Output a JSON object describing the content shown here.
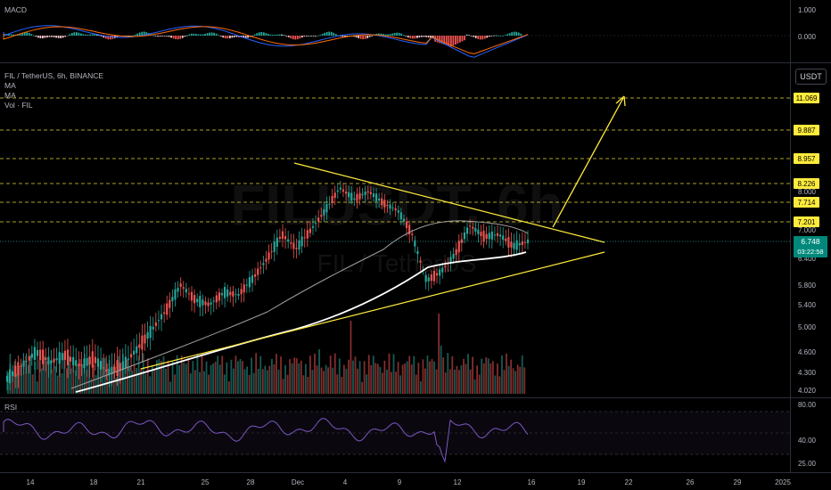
{
  "pair_title": "FIL / TetherUS, 6h, BINANCE",
  "currency_button": "USDT",
  "watermark_symbol": "FILUSDT, 6h",
  "watermark_name": "FIL / TetherUS",
  "legends": {
    "macd": "MACD",
    "ma1": "MA",
    "ma2": "MA",
    "vol": "Vol · FIL",
    "rsi": "RSI"
  },
  "current_price": "6.748",
  "countdown": "03:22:58",
  "colors": {
    "up": "#26a69a",
    "down": "#ef5350",
    "yellow": "#ffeb3b",
    "ma_white": "#ffffff",
    "ma_gray": "#9e9e9e",
    "macd_line": "#2962ff",
    "signal_line": "#ff6d00",
    "rsi_line": "#7e57c2",
    "price_tag": "#00897b"
  },
  "chart_data": [
    {
      "type": "candlestick",
      "pair": "FIL/USDT",
      "interval": "6h",
      "exchange": "BINANCE",
      "x_tick_labels": [
        "14",
        "18",
        "21",
        "25",
        "28",
        "Dec",
        "4",
        "9",
        "12",
        "16",
        "19",
        "22",
        "26",
        "29",
        "2025"
      ],
      "price_axis_labels": [
        "8.000",
        "7.000",
        "6.400",
        "5.800",
        "5.400",
        "5.000",
        "4.600",
        "4.300",
        "4.020"
      ],
      "horizontal_levels": [
        {
          "label": "11.069",
          "value": 11.069
        },
        {
          "label": "9.887",
          "value": 9.887
        },
        {
          "label": "8.957",
          "value": 8.957
        },
        {
          "label": "8.226",
          "value": 8.226
        },
        {
          "label": "7.714",
          "value": 7.714
        },
        {
          "label": "7.201",
          "value": 7.201
        }
      ],
      "last_price": 6.748,
      "candles_approx": [
        [
          4.05,
          4.25,
          4.0,
          4.2
        ],
        [
          4.2,
          4.45,
          4.15,
          4.4
        ],
        [
          4.4,
          4.7,
          4.35,
          4.6
        ],
        [
          4.6,
          4.62,
          4.4,
          4.45
        ],
        [
          4.45,
          4.65,
          4.4,
          4.55
        ],
        [
          4.55,
          4.6,
          4.35,
          4.4
        ],
        [
          4.4,
          4.55,
          4.3,
          4.5
        ],
        [
          4.5,
          4.52,
          4.25,
          4.3
        ],
        [
          4.3,
          4.45,
          4.2,
          4.4
        ],
        [
          4.4,
          4.7,
          4.35,
          4.65
        ],
        [
          4.65,
          5.0,
          4.6,
          4.95
        ],
        [
          4.95,
          5.4,
          4.9,
          5.3
        ],
        [
          5.3,
          5.9,
          5.25,
          5.8
        ],
        [
          5.8,
          5.85,
          5.4,
          5.5
        ],
        [
          5.5,
          5.6,
          5.3,
          5.4
        ],
        [
          5.4,
          5.7,
          5.35,
          5.65
        ],
        [
          5.65,
          5.75,
          5.5,
          5.6
        ],
        [
          5.6,
          6.0,
          5.55,
          5.95
        ],
        [
          5.95,
          6.5,
          5.9,
          6.4
        ],
        [
          6.4,
          7.0,
          6.35,
          6.9
        ],
        [
          6.9,
          6.95,
          6.5,
          6.6
        ],
        [
          6.6,
          7.1,
          6.55,
          7.0
        ],
        [
          7.0,
          7.6,
          6.95,
          7.5
        ],
        [
          7.5,
          8.3,
          7.4,
          8.1
        ],
        [
          8.1,
          8.2,
          7.7,
          7.8
        ],
        [
          7.8,
          8.1,
          7.6,
          8.0
        ],
        [
          8.0,
          8.05,
          7.6,
          7.7
        ],
        [
          7.7,
          7.85,
          7.4,
          7.5
        ],
        [
          7.5,
          7.55,
          6.8,
          6.9
        ],
        [
          6.9,
          6.95,
          5.8,
          5.9
        ],
        [
          5.9,
          6.2,
          5.7,
          6.1
        ],
        [
          6.1,
          6.6,
          6.0,
          6.5
        ],
        [
          6.5,
          7.2,
          6.45,
          7.1
        ],
        [
          7.1,
          7.15,
          6.75,
          6.85
        ],
        [
          6.85,
          7.0,
          6.7,
          6.9
        ],
        [
          6.9,
          6.95,
          6.6,
          6.65
        ],
        [
          6.65,
          6.8,
          6.55,
          6.75
        ]
      ],
      "annotations": [
        "symmetrical triangle",
        "breakout arrow toward 11.069"
      ]
    },
    {
      "type": "macd",
      "axis_labels": [
        "1.000",
        "0.000"
      ]
    },
    {
      "type": "rsi",
      "axis_labels": [
        "80.00",
        "40.00",
        "25.00"
      ]
    }
  ]
}
